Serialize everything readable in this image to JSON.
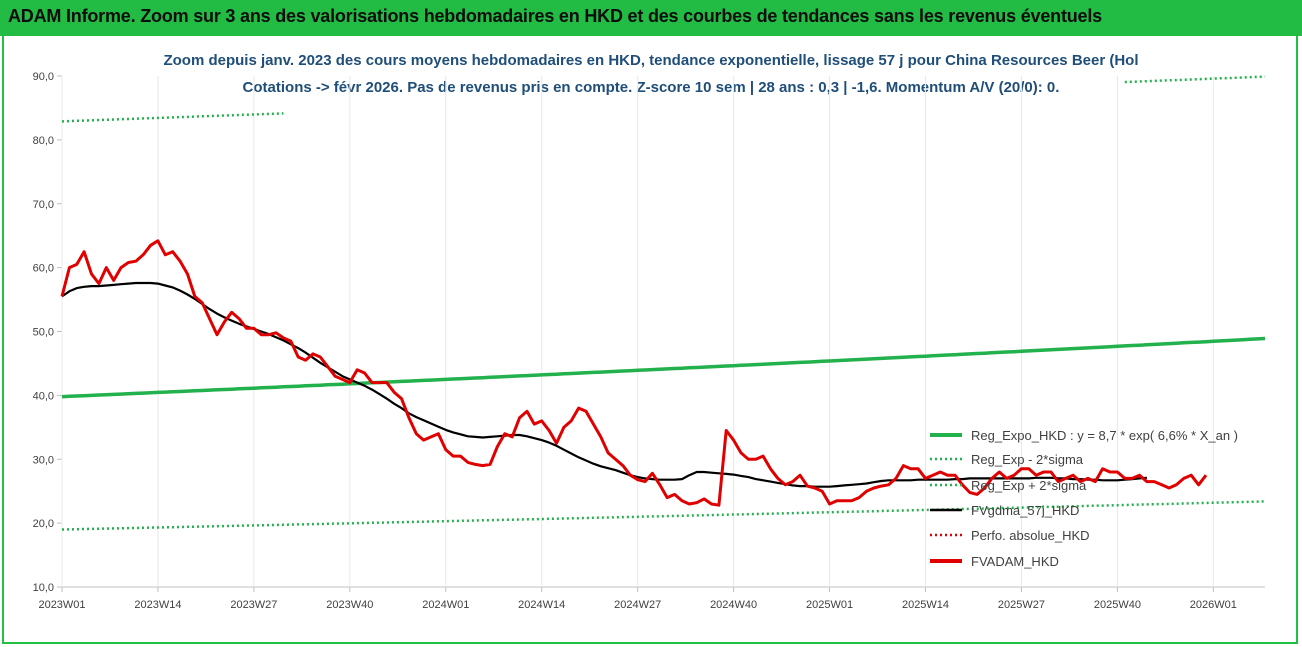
{
  "banner": {
    "title": "ADAM Informe. Zoom sur 3 ans des valorisations hebdomadaires en HKD et des courbes de tendances sans les revenus éventuels"
  },
  "chart_data": {
    "type": "line",
    "title_line1": "Zoom depuis janv. 2023 des cours moyens hebdomadaires en HKD, tendance exponentielle, lissage 57 j pour China Resources Beer (Hol",
    "title_line2": "Cotations -> févr 2026. Pas de revenus pris en compte. Z-score 10 sem | 28 ans : 0,3 | -1,6. Momentum A/V (20/0): 0.",
    "ylim": [
      10,
      90
    ],
    "y_ticks": [
      "10,0",
      "20,0",
      "30,0",
      "40,0",
      "50,0",
      "60,0",
      "70,0",
      "80,0",
      "90,0"
    ],
    "x_ticks": [
      "2023W01",
      "2023W14",
      "2023W27",
      "2023W40",
      "2024W01",
      "2024W14",
      "2024W27",
      "2024W40",
      "2025W01",
      "2025W14",
      "2025W27",
      "2025W40",
      "2026W01"
    ],
    "x_weeks": "2023W01 to 2026W08",
    "legend": [
      {
        "label": "Reg_Expo_HKD : y = 8,7 * exp( 6,6% *  X_an )",
        "color": "#22b14c",
        "style": "solid-thick"
      },
      {
        "label": "Reg_Exp - 2*sigma",
        "color": "#22b14c",
        "style": "dotted"
      },
      {
        "label": "Reg_Exp + 2*sigma",
        "color": "#22b14c",
        "style": "dotted"
      },
      {
        "label": "FVgdma_57j_HKD",
        "color": "#000000",
        "style": "solid"
      },
      {
        "label": "Perfo. absolue_HKD",
        "color": "#e00000",
        "style": "dotted"
      },
      {
        "label": "FVADAM_HKD",
        "color": "#e00000",
        "style": "solid-thick"
      }
    ],
    "series": [
      {
        "name": "Reg_Expo_HKD",
        "color": "#22b14c",
        "start": 39.8,
        "end": 48.9
      },
      {
        "name": "Reg_Exp - 2*sigma",
        "color": "#22b14c",
        "start": 19.0,
        "end": 23.4
      },
      {
        "name": "Reg_Exp + 2*sigma",
        "color": "#22b14c",
        "start": 82.9,
        "end": 89.9
      },
      {
        "name": "FVgdma_57j_HKD",
        "color": "#000000",
        "values": [
          55.5,
          56.3,
          56.8,
          57.0,
          57.1,
          57.1,
          57.2,
          57.3,
          57.4,
          57.5,
          57.6,
          57.6,
          57.6,
          57.5,
          57.2,
          56.9,
          56.4,
          55.8,
          55.1,
          54.3,
          53.5,
          52.8,
          52.2,
          51.7,
          51.2,
          50.8,
          50.4,
          50.0,
          49.6,
          49.1,
          48.6,
          48.0,
          47.4,
          46.7,
          45.9,
          45.1,
          44.4,
          43.7,
          43.0,
          42.5,
          42.0,
          41.5,
          40.9,
          40.2,
          39.5,
          38.7,
          38.0,
          37.2,
          36.6,
          36.1,
          35.6,
          35.1,
          34.6,
          34.2,
          33.9,
          33.6,
          33.5,
          33.4,
          33.5,
          33.6,
          33.7,
          33.8,
          33.8,
          33.6,
          33.3,
          33.0,
          32.6,
          32.1,
          31.5,
          30.9,
          30.3,
          29.8,
          29.3,
          28.9,
          28.6,
          28.3,
          27.9,
          27.5,
          27.2,
          27.0,
          26.9,
          26.8,
          26.8,
          26.8,
          26.9,
          27.5,
          28.0,
          28.0,
          27.9,
          27.8,
          27.7,
          27.6,
          27.4,
          27.2,
          26.9,
          26.7,
          26.5,
          26.3,
          26.1,
          25.9,
          25.8,
          25.8,
          25.7,
          25.7,
          25.7,
          25.8,
          25.9,
          26.0,
          26.1,
          26.2,
          26.4,
          26.6,
          26.7,
          26.7,
          26.7,
          26.7,
          26.8,
          26.8,
          26.8,
          26.8,
          26.8,
          26.9,
          26.9,
          27.0,
          27.0,
          27.0,
          27.0,
          27.0,
          27.0,
          27.0,
          27.0,
          27.0,
          27.1,
          27.1,
          27.1,
          27.0,
          27.0,
          26.9,
          26.9,
          26.8,
          26.8,
          26.7,
          26.7,
          26.7,
          26.8,
          26.9,
          27.0,
          27.1
        ]
      },
      {
        "name": "FVADAM_HKD",
        "color": "#e00000",
        "values": [
          55.5,
          60.0,
          60.5,
          62.5,
          59.0,
          57.5,
          60.0,
          58.0,
          60.0,
          60.8,
          61.0,
          62.0,
          63.5,
          64.2,
          62.0,
          62.5,
          61.0,
          59.0,
          55.5,
          54.5,
          52.0,
          49.5,
          51.5,
          53.0,
          52.0,
          50.5,
          50.5,
          49.5,
          49.5,
          49.8,
          49.0,
          48.5,
          46.0,
          45.5,
          46.5,
          46.0,
          44.5,
          43.0,
          42.5,
          42.0,
          44.0,
          43.5,
          42.0,
          42.0,
          42.0,
          40.5,
          39.5,
          36.5,
          34.0,
          33.0,
          33.5,
          34.0,
          31.5,
          30.5,
          30.5,
          29.5,
          29.2,
          29.0,
          29.2,
          32.0,
          34.0,
          33.5,
          36.5,
          37.5,
          35.5,
          36.0,
          34.5,
          32.5,
          35.0,
          36.0,
          38.0,
          37.5,
          35.5,
          33.5,
          31.0,
          30.0,
          29.0,
          27.5,
          26.8,
          26.5,
          27.8,
          26.0,
          24.0,
          24.5,
          23.5,
          23.0,
          23.2,
          23.8,
          23.0,
          22.8,
          34.5,
          33.0,
          31.0,
          30.0,
          30.0,
          30.5,
          28.5,
          27.0,
          26.0,
          26.5,
          27.5,
          25.8,
          25.5,
          25.0,
          23.0,
          23.5,
          23.5,
          23.5,
          24.0,
          25.0,
          25.5,
          25.8,
          26.0,
          27.0,
          29.0,
          28.5,
          28.5,
          27.0,
          27.5,
          28.0,
          27.5,
          27.5,
          26.0,
          24.8,
          24.5,
          25.5,
          27.0,
          28.0,
          27.0,
          27.5,
          28.5,
          28.5,
          27.5,
          28.0,
          28.0,
          26.5,
          27.0,
          27.5,
          26.5,
          27.0,
          26.5,
          28.5,
          28.0,
          28.0,
          27.0,
          27.0,
          27.5,
          26.5,
          26.5,
          26.0,
          25.5,
          26.0,
          27.0,
          27.5,
          26.0,
          27.5
        ]
      }
    ]
  }
}
